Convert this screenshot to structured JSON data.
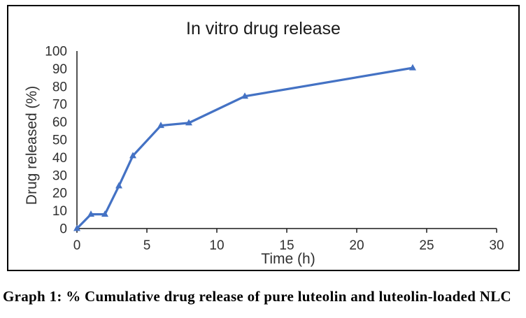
{
  "chart_data": {
    "type": "line",
    "title": "In vitro drug release",
    "xlabel": "Time (h)",
    "ylabel": "Drug released (%)",
    "x": [
      0,
      1,
      2,
      3,
      4,
      6,
      8,
      12,
      24
    ],
    "y": [
      0,
      8,
      8,
      24,
      41,
      58,
      59.5,
      74.5,
      90.5
    ],
    "xlim": [
      0,
      30
    ],
    "ylim": [
      0,
      100
    ],
    "x_ticks": [
      0,
      5,
      10,
      15,
      20,
      25,
      30
    ],
    "y_ticks": [
      0,
      10,
      20,
      30,
      40,
      50,
      60,
      70,
      80,
      90,
      100
    ],
    "grid": false,
    "legend": false,
    "marker": "triangle",
    "line_color": "#4472C4",
    "axis_color": "#1a1a1a",
    "tick_label_color": "#303030",
    "title_color": "#1a1a1a",
    "frame_border_color": "#000000"
  },
  "caption": "Graph 1: % Cumulative drug release of pure luteolin and luteolin-loaded NLC"
}
